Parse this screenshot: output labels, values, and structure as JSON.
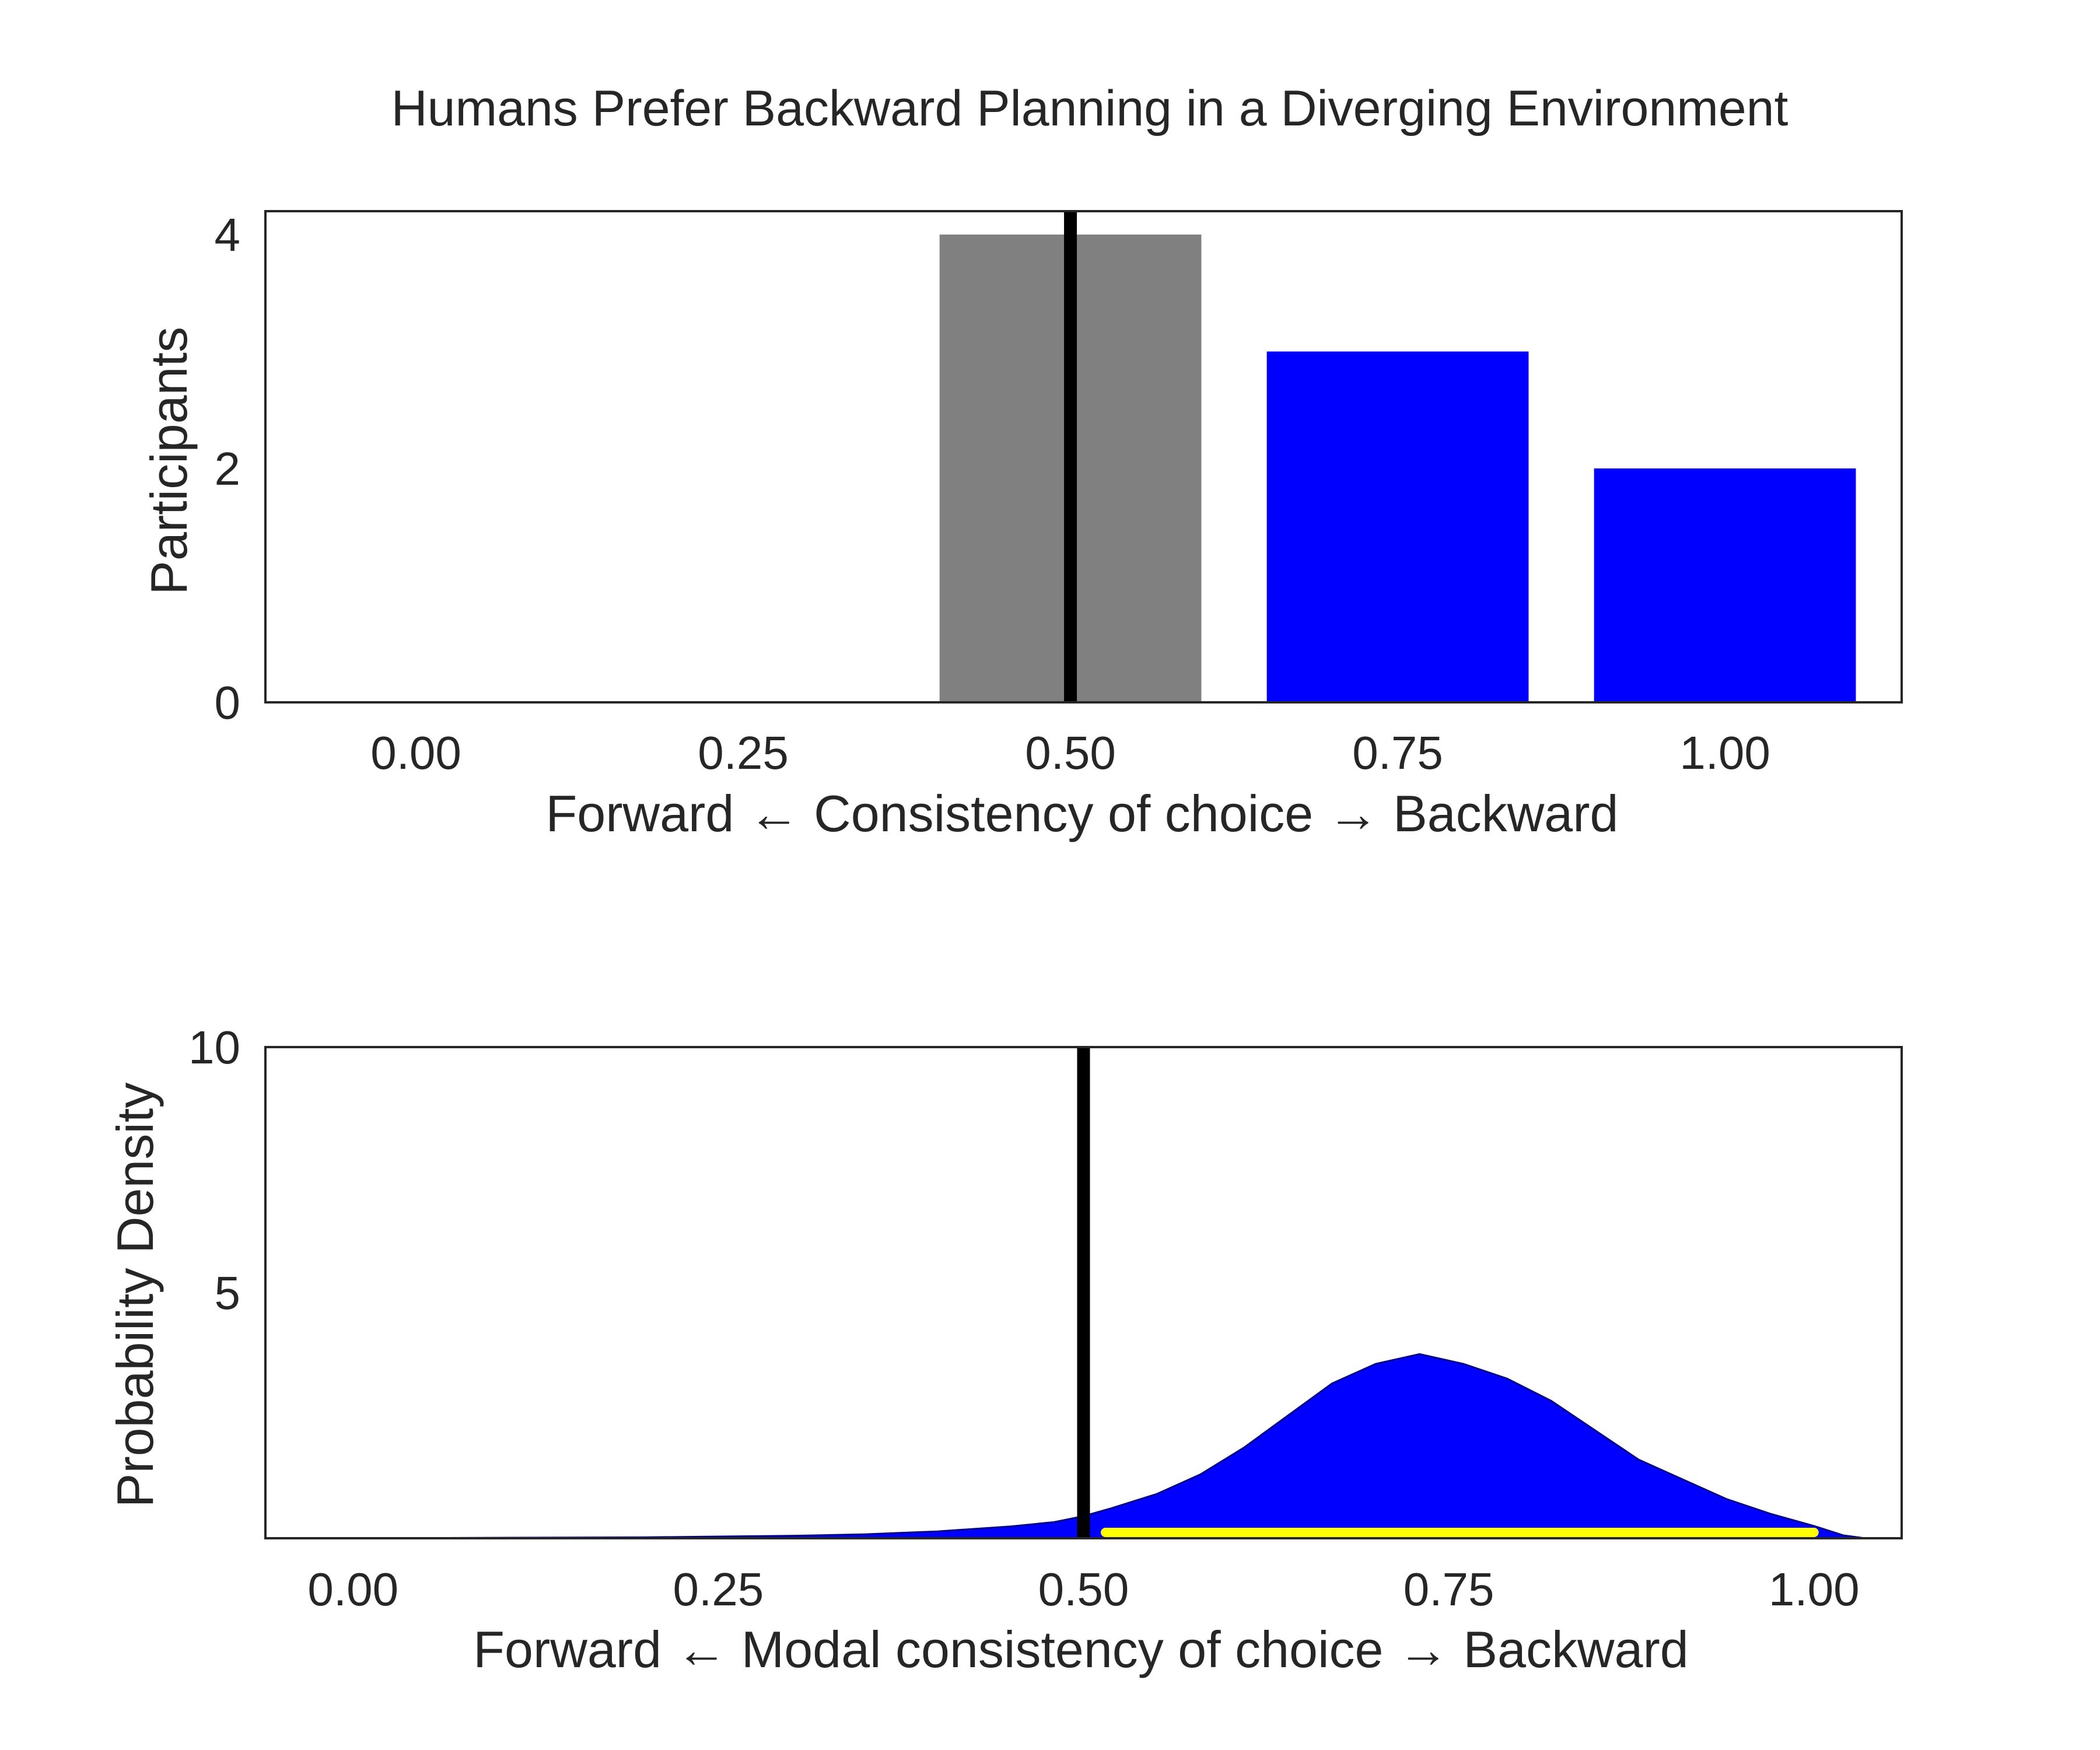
{
  "title": "Humans Prefer Backward Planning in a Diverging Environment",
  "colors": {
    "neutral": "#808080",
    "backward": "#0000ff",
    "reference_line": "#000000",
    "interval": "#ffff00",
    "text": "#262626"
  },
  "chart_data": [
    {
      "type": "bar",
      "xlabel": "Forward ← Consistency of choice → Backward",
      "ylabel": "Participants",
      "xlim": [
        -0.115,
        1.135
      ],
      "ylim": [
        0,
        4.2
      ],
      "xticks": [
        0.0,
        0.25,
        0.5,
        0.75,
        1.0
      ],
      "xtick_labels": [
        "0.00",
        "0.25",
        "0.50",
        "0.75",
        "1.00"
      ],
      "yticks": [
        0,
        2,
        4
      ],
      "ytick_labels": [
        "0",
        "2",
        "4"
      ],
      "bar_width": 0.2,
      "bars": [
        {
          "x": 0.5,
          "value": 4,
          "color": "#808080"
        },
        {
          "x": 0.75,
          "value": 3,
          "color": "#0000ff"
        },
        {
          "x": 1.0,
          "value": 2,
          "color": "#0000ff"
        }
      ],
      "reference_line_x": 0.5
    },
    {
      "type": "area",
      "xlabel": "Forward ← Modal consistency of choice → Backward",
      "ylabel": "Probability Density",
      "xlim": [
        -0.06,
        1.06
      ],
      "ylim": [
        0,
        10
      ],
      "xticks": [
        0.0,
        0.25,
        0.5,
        0.75,
        1.0
      ],
      "xtick_labels": [
        "0.00",
        "0.25",
        "0.50",
        "0.75",
        "1.00"
      ],
      "yticks": [
        5,
        10
      ],
      "ytick_labels": [
        "5",
        "10"
      ],
      "density_x": [
        0.0,
        0.1,
        0.2,
        0.3,
        0.35,
        0.4,
        0.45,
        0.48,
        0.5,
        0.52,
        0.55,
        0.58,
        0.61,
        0.64,
        0.67,
        0.7,
        0.73,
        0.76,
        0.79,
        0.82,
        0.85,
        0.88,
        0.91,
        0.94,
        0.97,
        1.0,
        1.02,
        1.035
      ],
      "density_y": [
        0.0,
        0.01,
        0.02,
        0.05,
        0.08,
        0.14,
        0.24,
        0.33,
        0.45,
        0.62,
        0.9,
        1.3,
        1.85,
        2.5,
        3.15,
        3.55,
        3.75,
        3.55,
        3.25,
        2.8,
        2.2,
        1.6,
        1.2,
        0.8,
        0.5,
        0.25,
        0.06,
        0.0
      ],
      "interval": [
        0.515,
        1.0
      ],
      "reference_line_x": 0.5
    }
  ]
}
